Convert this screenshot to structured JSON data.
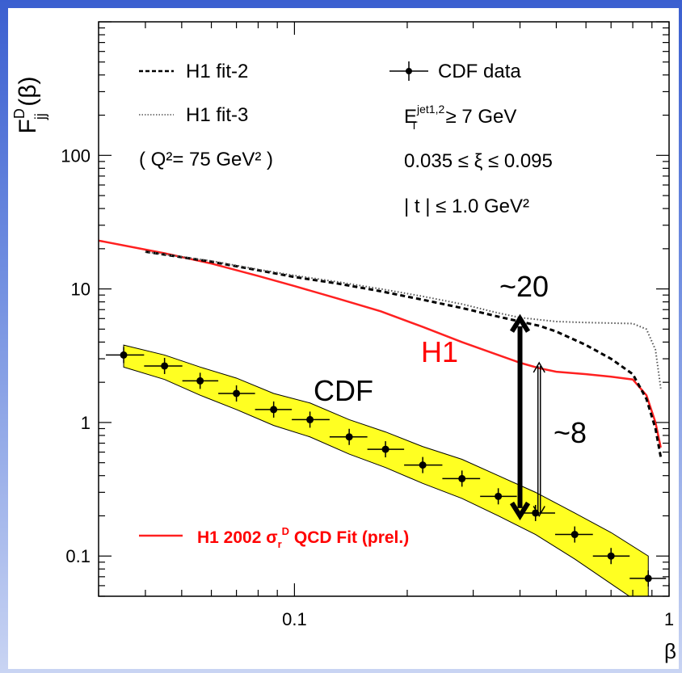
{
  "chart_data": {
    "type": "line",
    "x_scale": "log",
    "y_scale": "log",
    "xlim": [
      0.03,
      1
    ],
    "ylim": [
      0.05,
      1000
    ],
    "x_ticks": [
      {
        "v": 0.1,
        "label": "0.1"
      },
      {
        "v": 1,
        "label": "1"
      }
    ],
    "y_ticks": [
      {
        "v": 0.1,
        "label": "0.1"
      },
      {
        "v": 1,
        "label": "1"
      },
      {
        "v": 10,
        "label": "10"
      },
      {
        "v": 100,
        "label": "100"
      }
    ],
    "xlabel": "β",
    "ylabel": {
      "main": "F",
      "sup": "D",
      "sub": "jj",
      "rest": " (β)"
    },
    "legend_left": [
      {
        "line": "dash",
        "label": "H1 fit-2"
      },
      {
        "line": "dot",
        "label": "H1 fit-3"
      },
      {
        "label": "( Q²= 75 GeV² )"
      }
    ],
    "legend_right": [
      {
        "marker": "cross",
        "label": "CDF data"
      },
      {
        "label_main": "E",
        "label_sup": "jet1,2",
        "label_sub": "T",
        "label_rest": " ≥ 7 GeV"
      },
      {
        "label": "0.035 ≤ ξ ≤ 0.095"
      },
      {
        "label": "| t | ≤ 1.0 GeV²"
      }
    ],
    "legend_bottom": {
      "label": "H1 2002 σ",
      "sub": "r",
      "sup": "D",
      "rest": " QCD Fit (prel.)",
      "color": "#ff0000"
    },
    "annotations": [
      {
        "id": "h1",
        "text": "H1",
        "color": "#ff0000"
      },
      {
        "id": "cdf",
        "text": "CDF",
        "color": "#000000"
      },
      {
        "id": "r20",
        "text": "~20",
        "color": "#000000"
      },
      {
        "id": "r8",
        "text": "~8",
        "color": "#000000"
      }
    ],
    "series": [
      {
        "name": "H1 2002 σrD QCD Fit (prel.)",
        "style": "solid",
        "color": "#ff2020",
        "x": [
          0.03,
          0.045,
          0.06,
          0.08,
          0.1,
          0.13,
          0.17,
          0.22,
          0.28,
          0.35,
          0.4,
          0.45,
          0.5,
          0.6,
          0.7,
          0.8,
          0.87,
          0.92,
          0.95
        ],
        "y": [
          23,
          18.5,
          15.5,
          12.5,
          10.5,
          8.5,
          6.8,
          5.2,
          4.0,
          3.2,
          2.8,
          2.55,
          2.4,
          2.3,
          2.2,
          2.1,
          1.6,
          1.0,
          0.65
        ]
      },
      {
        "name": "H1 fit-2",
        "style": "dash",
        "color": "#000000",
        "x": [
          0.04,
          0.06,
          0.08,
          0.1,
          0.13,
          0.17,
          0.22,
          0.28,
          0.35,
          0.4,
          0.45,
          0.5,
          0.6,
          0.7,
          0.8,
          0.87,
          0.92,
          0.95
        ],
        "y": [
          19,
          16,
          13.8,
          12.3,
          11.0,
          9.6,
          8.3,
          7.2,
          6.2,
          5.7,
          5.3,
          4.8,
          3.8,
          3.0,
          2.3,
          1.5,
          0.9,
          0.55
        ]
      },
      {
        "name": "H1 fit-3",
        "style": "dot",
        "color": "#555555",
        "x": [
          0.04,
          0.06,
          0.08,
          0.1,
          0.13,
          0.17,
          0.22,
          0.28,
          0.35,
          0.4,
          0.5,
          0.6,
          0.7,
          0.8,
          0.87,
          0.92,
          0.95
        ],
        "y": [
          19,
          16.2,
          14.0,
          12.6,
          11.3,
          10.0,
          8.8,
          7.7,
          6.6,
          6.1,
          5.7,
          5.6,
          5.55,
          5.5,
          5.0,
          3.5,
          1.8
        ]
      }
    ],
    "cdf_data": {
      "name": "CDF data",
      "x": [
        0.035,
        0.045,
        0.056,
        0.07,
        0.088,
        0.11,
        0.14,
        0.175,
        0.22,
        0.28,
        0.35,
        0.44,
        0.56,
        0.7,
        0.88
      ],
      "y": [
        3.2,
        2.65,
        2.05,
        1.65,
        1.25,
        1.05,
        0.78,
        0.63,
        0.48,
        0.38,
        0.28,
        0.21,
        0.145,
        0.1,
        0.068
      ],
      "band_color": "#ffff22",
      "band_low": [
        2.6,
        2.1,
        1.6,
        1.25,
        0.95,
        0.78,
        0.58,
        0.46,
        0.35,
        0.27,
        0.2,
        0.145,
        0.095,
        0.062,
        0.04
      ],
      "band_high": [
        3.8,
        3.2,
        2.6,
        2.15,
        1.65,
        1.4,
        1.05,
        0.85,
        0.66,
        0.53,
        0.4,
        0.3,
        0.21,
        0.15,
        0.1
      ]
    },
    "arrows": [
      {
        "name": "ratio-20-arrow",
        "x": 0.4,
        "y_from": 0.2,
        "y_to": 6.0,
        "style": "thick"
      },
      {
        "name": "ratio-8-arrow",
        "x": 0.45,
        "y_from": 0.2,
        "y_to": 2.8,
        "style": "thin"
      }
    ]
  }
}
